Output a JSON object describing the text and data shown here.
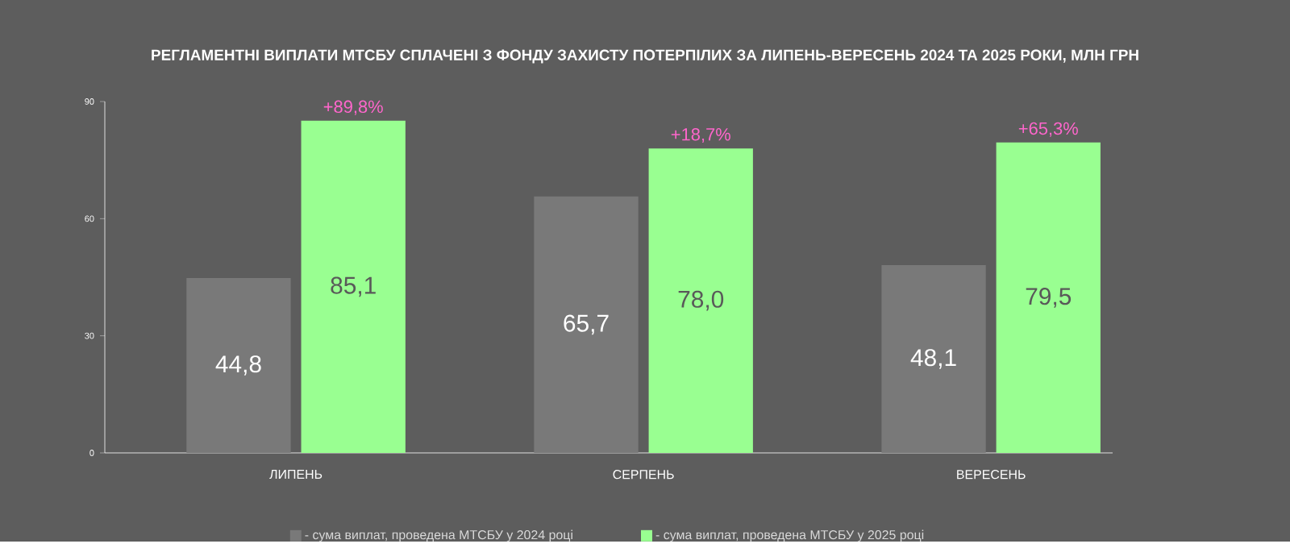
{
  "chart_data": {
    "type": "bar",
    "title": "РЕГЛАМЕНТНІ ВИПЛАТИ МТСБУ СПЛАЧЕНІ З ФОНДУ ЗАХИСТУ ПОТЕРПІЛИХ ЗА ЛИПЕНЬ-ВЕРЕСЕНЬ 2024 ТА 2025 РОКИ, МЛН ГРН",
    "categories": [
      "ЛИПЕНЬ",
      "СЕРПЕНЬ",
      "ВЕРЕСЕНЬ"
    ],
    "series": [
      {
        "name": "- сума виплат, проведена МТСБУ у 2024 році",
        "color": "#797979",
        "values": [
          44.8,
          65.7,
          48.1
        ],
        "value_labels": [
          "44,8",
          "65,7",
          "48,1"
        ]
      },
      {
        "name": "- сума виплат, проведена МТСБУ у 2025 році",
        "color": "#99ff91",
        "values": [
          85.1,
          78.0,
          79.5
        ],
        "value_labels": [
          "85,1",
          "78,0",
          "79,5"
        ]
      }
    ],
    "ylim": [
      0,
      90
    ],
    "yticks": [
      0,
      30,
      60,
      90
    ],
    "grid": false,
    "legend": "bottom",
    "annotations": [
      {
        "text": "+89,8%",
        "x": "ЛИПЕНЬ",
        "y": 85.1
      },
      {
        "text": "+18,7%",
        "x": "СЕРПЕНЬ",
        "y": 78.0
      },
      {
        "text": "+65,3%",
        "x": "ВЕРЕСЕНЬ",
        "y": 79.5
      }
    ]
  }
}
